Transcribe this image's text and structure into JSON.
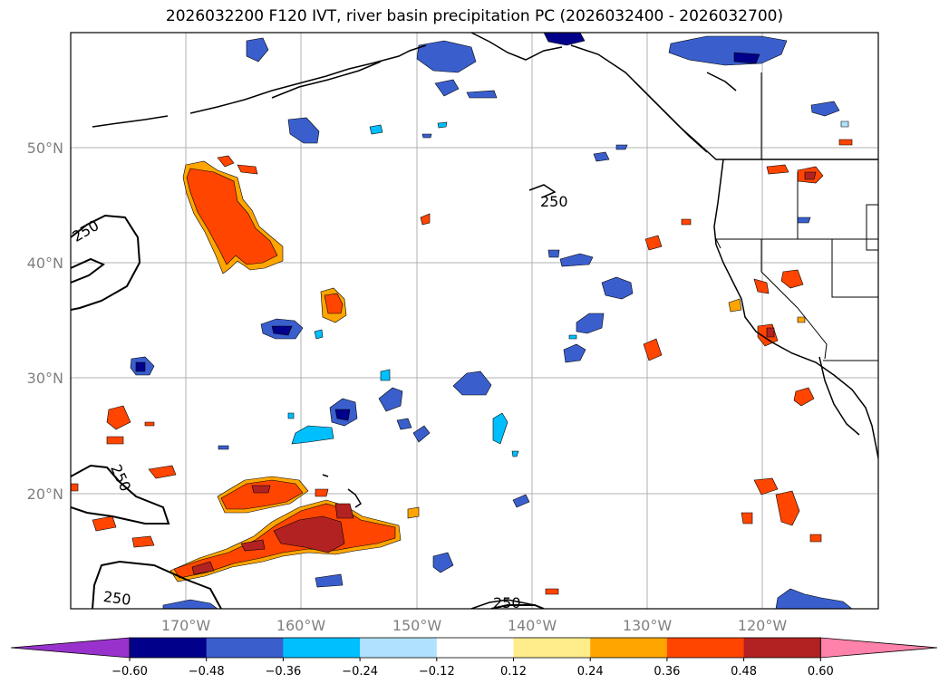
{
  "title": "2026032200 F120 IVT, river basin precipitation PC (2026032400 - 2026032700)",
  "latitude_labels": [
    "50°N",
    "40°N",
    "30°N",
    "20°N"
  ],
  "longitude_labels": [
    "170°W",
    "160°W",
    "150°W",
    "140°W",
    "130°W",
    "120°W"
  ],
  "contour_labels": [
    "250",
    "250",
    "250",
    "250",
    "250"
  ],
  "colorbar": {
    "ticks": [
      "−0.60",
      "−0.48",
      "−0.36",
      "−0.24",
      "−0.12",
      "0.12",
      "0.24",
      "0.36",
      "0.48",
      "0.60"
    ],
    "colors": [
      "#9932cc",
      "#00008b",
      "#3a5fcd",
      "#00bfff",
      "#b0e2ff",
      "#ffffff",
      "#ffec8b",
      "#ffa500",
      "#ff4500",
      "#b22222",
      "#ff82ab"
    ]
  },
  "legend_colors": {
    "dark_blue": "#00008b",
    "blue": "#3a5fcd",
    "sky": "#00bfff",
    "light_blue": "#b0e2ff",
    "yellow": "#ffec8b",
    "orange": "#ffa500",
    "red_orange": "#ff4500",
    "firebrick": "#b22222"
  }
}
